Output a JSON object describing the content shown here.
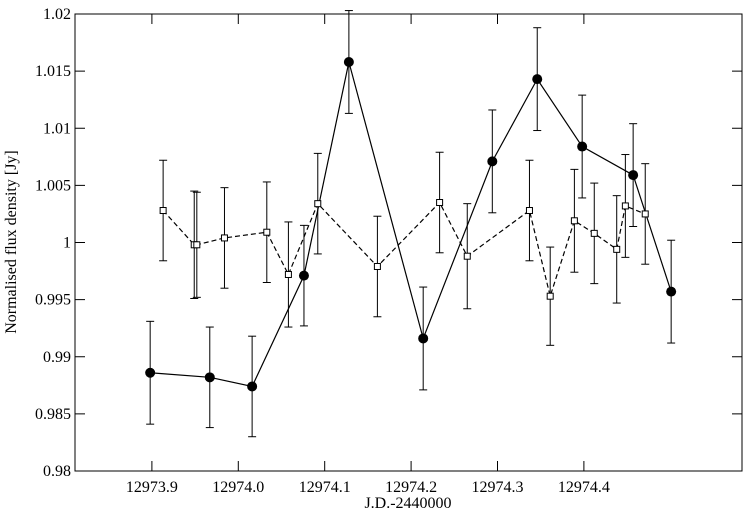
{
  "chart_data": {
    "type": "errorbar",
    "xlabel": "J.D.-2440000",
    "ylabel": "Normalised flux density [Jy]",
    "xlim": [
      12973.811,
      12974.583
    ],
    "ylim": [
      0.98,
      1.02
    ],
    "xticks": [
      12973.9,
      {
        "value": 12974,
        "label": "12974.0"
      },
      12974.1,
      12974.2,
      12974.3,
      12974.4
    ],
    "yticks": [
      0.98,
      0.985,
      0.99,
      0.995,
      1,
      1.005,
      1.01,
      1.015,
      1.02
    ],
    "series": [
      {
        "color": "#000000",
        "marker": "circle",
        "linestyle": "solid",
        "x": [
          12973.898,
          12973.967,
          12974.016,
          12974.076,
          12974.128,
          12974.214,
          12974.294,
          12974.346,
          12974.398,
          12974.457,
          12974.501
        ],
        "values": [
          0.9886,
          0.9882,
          0.9874,
          0.9971,
          1.0158,
          0.9916,
          1.0071,
          1.0143,
          1.0084,
          1.0059,
          0.9957
        ],
        "errors": [
          0.0045,
          0.0044,
          0.0044,
          0.0044,
          0.0045,
          0.0045,
          0.0045,
          0.0045,
          0.0045,
          0.0045,
          0.0045
        ]
      },
      {
        "color": "#000000",
        "marker": "square",
        "linestyle": "dashed",
        "x": [
          12973.913,
          12973.949,
          12973.952,
          12973.984,
          12974.033,
          12974.058,
          12974.092,
          12974.161,
          12974.233,
          12974.265,
          12974.337,
          12974.361,
          12974.389,
          12974.412,
          12974.438,
          12974.448,
          12974.471
        ],
        "values": [
          1.0028,
          0.9998,
          0.9998,
          1.0004,
          1.0009,
          0.9972,
          1.0034,
          0.9979,
          1.0035,
          0.9988,
          1.0028,
          0.9953,
          1.0019,
          1.0008,
          0.9994,
          1.0032,
          1.0025
        ],
        "errors": [
          0.0044,
          0.0047,
          0.0046,
          0.0044,
          0.0044,
          0.0046,
          0.0044,
          0.0044,
          0.0044,
          0.0046,
          0.0044,
          0.0043,
          0.0045,
          0.0044,
          0.0047,
          0.0045,
          0.0044
        ]
      }
    ]
  }
}
